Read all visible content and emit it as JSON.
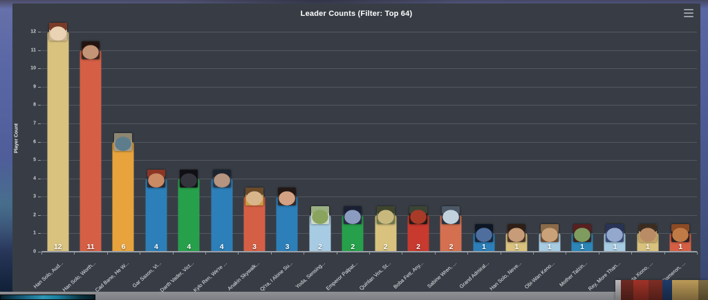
{
  "chart": {
    "title": "Leader Counts (Filter: Top 64)",
    "menu_icon": "hamburger-menu-icon",
    "panel_bg": "#383d45",
    "gridline_color": "#54585f",
    "axis_color": "#9aa0a7"
  },
  "chart_data": {
    "type": "bar",
    "title": "Leader Counts (Filter: Top 64)",
    "xlabel": "",
    "ylabel": "Player Count",
    "ylim": [
      0,
      12
    ],
    "y_ticks": [
      0,
      1,
      2,
      3,
      4,
      5,
      6,
      7,
      8,
      9,
      10,
      11,
      12
    ],
    "grid": true,
    "legend": false,
    "categories": [
      "Han Solo, Aud...",
      "Han Solo, Worth...",
      "Cad Bane, He W...",
      "Gar Saxon, Vi...",
      "Darth Vader, Vict...",
      "Kylo Ren, We're ...",
      "Anakin Skywalk...",
      "Qi'ra, I Alone Su...",
      "Yoda, Sensing...",
      "Emperor Palpat...",
      "Quinlan Vos, St...",
      "Boba Fett, Any...",
      "Sabine Wren, ...",
      "Grand Admiral...",
      "Han Solo, Neve...",
      "Obi-Wan Keno...",
      "Mother Talzin...",
      "Rey, More Than...",
      "Kazuda Xiono, ...",
      "Poe Dameron, ..."
    ],
    "values": [
      12,
      11,
      6,
      4,
      4,
      4,
      3,
      3,
      2,
      2,
      2,
      2,
      2,
      1,
      1,
      1,
      1,
      1,
      1,
      1
    ],
    "bar_colors": [
      "#d9c27e",
      "#d55f45",
      "#e8a33c",
      "#2c7fb8",
      "#27a04b",
      "#2c7fb8",
      "#d55f45",
      "#2c7fb8",
      "#a7cbe2",
      "#27a04b",
      "#d9c27e",
      "#c8392e",
      "#d4704f",
      "#2c7fb8",
      "#d9c27e",
      "#a7cbe2",
      "#2c86b8",
      "#a7cbe2",
      "#d9c27e",
      "#d55f45"
    ],
    "portraits": [
      {
        "bg": "#c9b593",
        "hair": "#7a3a28",
        "face": "#ead2b4"
      },
      {
        "bg": "#3c2822",
        "hair": "#241410",
        "face": "#c49476"
      },
      {
        "bg": "#a89c84",
        "hair": "#8d8670",
        "face": "#5d7d8d"
      },
      {
        "bg": "#2e2a30",
        "hair": "#8c3524",
        "face": "#c98a64"
      },
      {
        "bg": "#141418",
        "hair": "#101014",
        "face": "#33343c"
      },
      {
        "bg": "#2c3a4e",
        "hair": "#1c2430",
        "face": "#b59480"
      },
      {
        "bg": "#c79d3e",
        "hair": "#6b4a2a",
        "face": "#d9b58c"
      },
      {
        "bg": "#352a26",
        "hair": "#221814",
        "face": "#d3a284"
      },
      {
        "bg": "#cdd8c8",
        "hair": "#9ab082",
        "face": "#8aa35e"
      },
      {
        "bg": "#272e44",
        "hair": "#1a2034",
        "face": "#8b9cc0"
      },
      {
        "bg": "#6d7a4c",
        "hair": "#3e452c",
        "face": "#c9b87e"
      },
      {
        "bg": "#241a16",
        "hair": "#3c4434",
        "face": "#a83a28"
      },
      {
        "bg": "#2c3340",
        "hair": "#4c5866",
        "face": "#c2d2dd"
      },
      {
        "bg": "#1b2638",
        "hair": "#0e1624",
        "face": "#4e6e9e"
      },
      {
        "bg": "#4e362a",
        "hair": "#2e1e16",
        "face": "#c79c78"
      },
      {
        "bg": "#6e4c34",
        "hair": "#8a6a48",
        "face": "#caa27a"
      },
      {
        "bg": "#3c2222",
        "hair": "#571f1f",
        "face": "#7d9c5e"
      },
      {
        "bg": "#3c4a78",
        "hair": "#283356",
        "face": "#93a8cc"
      },
      {
        "bg": "#c4a266",
        "hair": "#3c2c20",
        "face": "#b98c66"
      },
      {
        "bg": "#2a2226",
        "hair": "#8c4a24",
        "face": "#c07a46"
      }
    ]
  },
  "overlays": {
    "video_bar_colors": [
      "#06222e",
      "#2d95b5",
      "#071d26"
    ],
    "shelf_box_colors": [
      "#b9b9bb",
      "#6e2a22",
      "#a03328",
      "#7e2d24",
      "#203c68",
      "#bb9a58",
      "#7c6a42"
    ],
    "shelf_box_widths": [
      8,
      18,
      22,
      20,
      14,
      38,
      14
    ]
  }
}
